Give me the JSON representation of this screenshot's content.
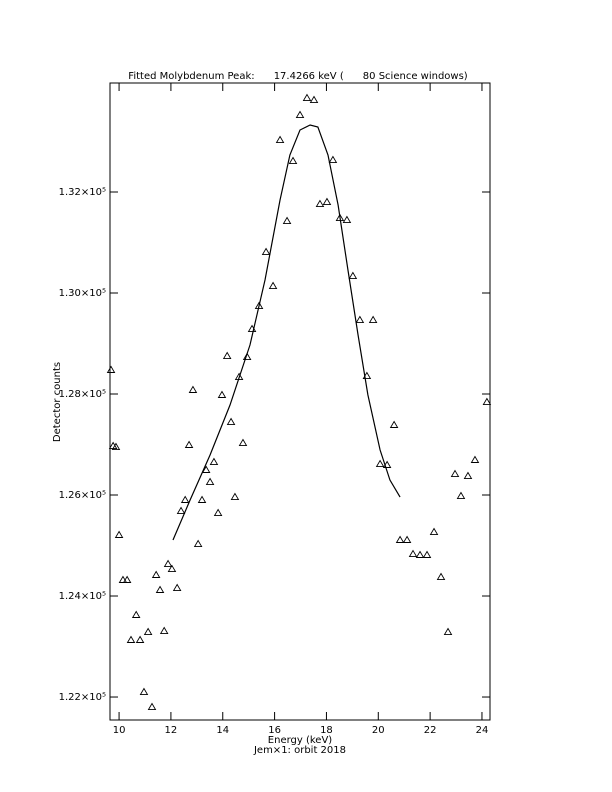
{
  "chart_data": {
    "type": "scatter",
    "title": "Fitted Molybdenum Peak:      17.4266 keV (      80 Science windows)",
    "x_label": "Energy (keV)",
    "subtitle": "Jem×1: orbit 2018",
    "y_label": "Detector counts",
    "xlim": [
      9.65,
      24.31
    ],
    "ylim": [
      121545,
      134158
    ],
    "xticks": [
      10,
      12,
      14,
      16,
      18,
      20,
      22,
      24
    ],
    "yticks": [
      {
        "value": 122000,
        "label": "1.22×10⁵"
      },
      {
        "value": 124000,
        "label": "1.24×10⁵"
      },
      {
        "value": 126000,
        "label": "1.26×10⁵"
      },
      {
        "value": 128000,
        "label": "1.28×10⁵"
      },
      {
        "value": 130000,
        "label": "1.30×10⁵"
      },
      {
        "value": 132000,
        "label": "1.32×10⁵"
      }
    ],
    "color": "#000000",
    "points": {
      "x": [
        9.69,
        9.77,
        9.88,
        10.0,
        10.15,
        10.31,
        10.46,
        10.66,
        10.81,
        10.96,
        11.12,
        11.27,
        11.43,
        11.58,
        11.74,
        11.89,
        12.04,
        12.24,
        12.39,
        12.55,
        12.7,
        12.85,
        13.05,
        13.2,
        13.36,
        13.51,
        13.66,
        13.82,
        13.97,
        14.17,
        14.32,
        14.47,
        14.63,
        14.78,
        14.94,
        15.13,
        15.4,
        15.67,
        15.94,
        16.21,
        16.48,
        16.71,
        16.98,
        17.25,
        17.52,
        17.75,
        18.02,
        18.25,
        18.52,
        18.79,
        19.02,
        19.29,
        19.56,
        19.8,
        20.07,
        20.34,
        20.61,
        20.84,
        21.11,
        21.34,
        21.61,
        21.88,
        22.15,
        22.42,
        22.69,
        22.96,
        23.19,
        23.46,
        23.73,
        24.19
      ],
      "y": [
        128475,
        126970,
        126950,
        125208,
        124317,
        124317,
        123129,
        123624,
        123129,
        122099,
        123287,
        121802,
        124416,
        124119,
        123307,
        124633,
        124534,
        124158,
        125683,
        125901,
        126990,
        128079,
        125029,
        125901,
        126495,
        126257,
        126653,
        125643,
        127980,
        128752,
        127445,
        125960,
        128336,
        127029,
        128732,
        129286,
        129742,
        130811,
        130138,
        133029,
        131425,
        132613,
        133524,
        133860,
        133821,
        131761,
        131801,
        132633,
        131484,
        131445,
        130336,
        129465,
        128356,
        129465,
        126613,
        126594,
        127386,
        125109,
        125109,
        124831,
        124812,
        124812,
        125267,
        124376,
        123287,
        126415,
        125980,
        126376,
        126693,
        127841
      ]
    },
    "fit": {
      "x": [
        12.08,
        12.74,
        13.51,
        14.28,
        15.05,
        15.63,
        16.21,
        16.59,
        16.98,
        17.37,
        17.67,
        18.06,
        18.45,
        18.83,
        19.22,
        19.6,
        20.07,
        20.45,
        20.84
      ],
      "y": [
        125109,
        125901,
        126792,
        127782,
        128970,
        130257,
        131841,
        132732,
        133227,
        133326,
        133286,
        132732,
        131742,
        130455,
        129168,
        127980,
        126891,
        126297,
        125960
      ]
    }
  }
}
